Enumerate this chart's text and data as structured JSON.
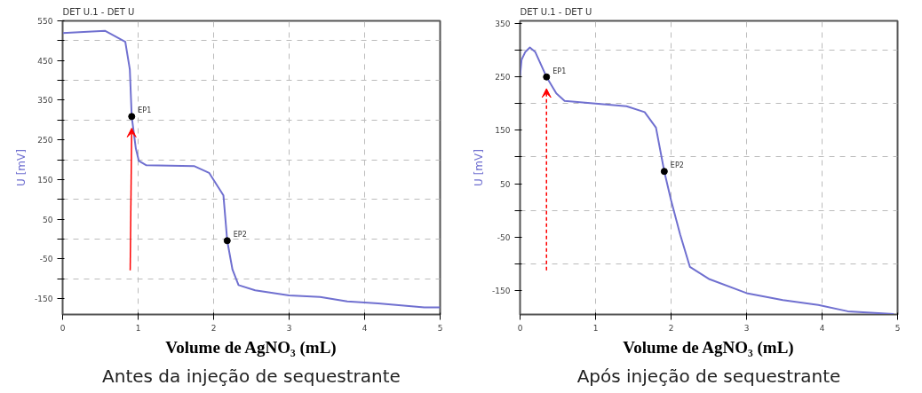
{
  "chart_data": [
    {
      "type": "line",
      "title": "DET U.1 - DET U",
      "xlabel": "Volume de AgNO₃ (mL)",
      "ylabel": "U [mV]",
      "xlim": [
        0,
        5
      ],
      "xticks": [
        0,
        1,
        2,
        3,
        4,
        5
      ],
      "ylim": [
        -190,
        550
      ],
      "yticks": [
        550,
        {
          "value": 500,
          "label": null
        },
        450,
        {
          "value": 400,
          "label": null
        },
        350,
        {
          "value": 300,
          "label": null
        },
        250,
        {
          "value": 200,
          "label": null
        },
        150,
        {
          "value": 100,
          "label": null
        },
        50,
        {
          "value": 0,
          "label": null
        },
        -50,
        {
          "value": -100,
          "label": null
        },
        -150
      ],
      "grid": true,
      "line_style": "solid",
      "series": [
        {
          "color": "#7070d0",
          "x": [
            0,
            0.56,
            0.83,
            0.89,
            0.915,
            0.97,
            1.01,
            1.11,
            1.74,
            1.94,
            2.13,
            2.18,
            2.25,
            2.33,
            2.55,
            3.0,
            3.41,
            3.77,
            4.18,
            4.79,
            5
          ],
          "values": [
            519,
            525,
            497,
            428,
            309,
            228,
            197,
            186,
            184,
            167,
            110,
            -4,
            -77,
            -116,
            -129,
            -142,
            -146,
            -157,
            -162,
            -172,
            -172
          ]
        },
        {
          "type": "scatter",
          "marker": "circle",
          "color": "#000000",
          "x": [
            0.915,
            2.18
          ],
          "values": [
            309,
            -4
          ]
        }
      ],
      "annotations": [
        {
          "text": "EP1",
          "x": 0.915,
          "y": 309
        },
        {
          "text": "EP2",
          "x": 2.18,
          "y": -4
        },
        "Antes da injeção de sequestrante"
      ]
    },
    {
      "type": "line",
      "title": "DET U.1 - DET U",
      "xlabel": "Volume de AgNO₃ (mL)",
      "ylabel": "U [mV]",
      "xlim": [
        0,
        5
      ],
      "xticks": [
        0,
        1,
        2,
        3,
        4,
        5
      ],
      "ylim": [
        -195,
        355
      ],
      "yticks": [
        350,
        {
          "value": 300,
          "label": null
        },
        250,
        {
          "value": 200,
          "label": null
        },
        150,
        {
          "value": 100,
          "label": null
        },
        50,
        {
          "value": 0,
          "label": null
        },
        -50,
        {
          "value": -100,
          "label": null
        },
        -150
      ],
      "grid": true,
      "line_style": "solid",
      "series": [
        {
          "color": "#7070d0",
          "x": [
            0,
            0.02,
            0.07,
            0.13,
            0.2,
            0.35,
            0.48,
            0.59,
            1,
            1.41,
            1.65,
            1.8,
            1.91,
            2,
            2.12,
            2.25,
            2.51,
            3.0,
            3.48,
            3.95,
            4.34,
            4.95
          ],
          "values": [
            252,
            282,
            297,
            305,
            297,
            250,
            219,
            205,
            200,
            195,
            184,
            155,
            73,
            19,
            -45,
            -106,
            -129,
            -155,
            -168,
            -177,
            -189,
            -194
          ]
        },
        {
          "type": "scatter",
          "marker": "circle",
          "color": "#000000",
          "x": [
            0.35,
            1.91
          ],
          "values": [
            250,
            73
          ]
        }
      ],
      "annotations": [
        {
          "text": "EP1",
          "x": 0.35,
          "y": 250
        },
        {
          "text": "EP2",
          "x": 1.91,
          "y": 73
        },
        "Após injeção de sequestrante"
      ]
    }
  ]
}
